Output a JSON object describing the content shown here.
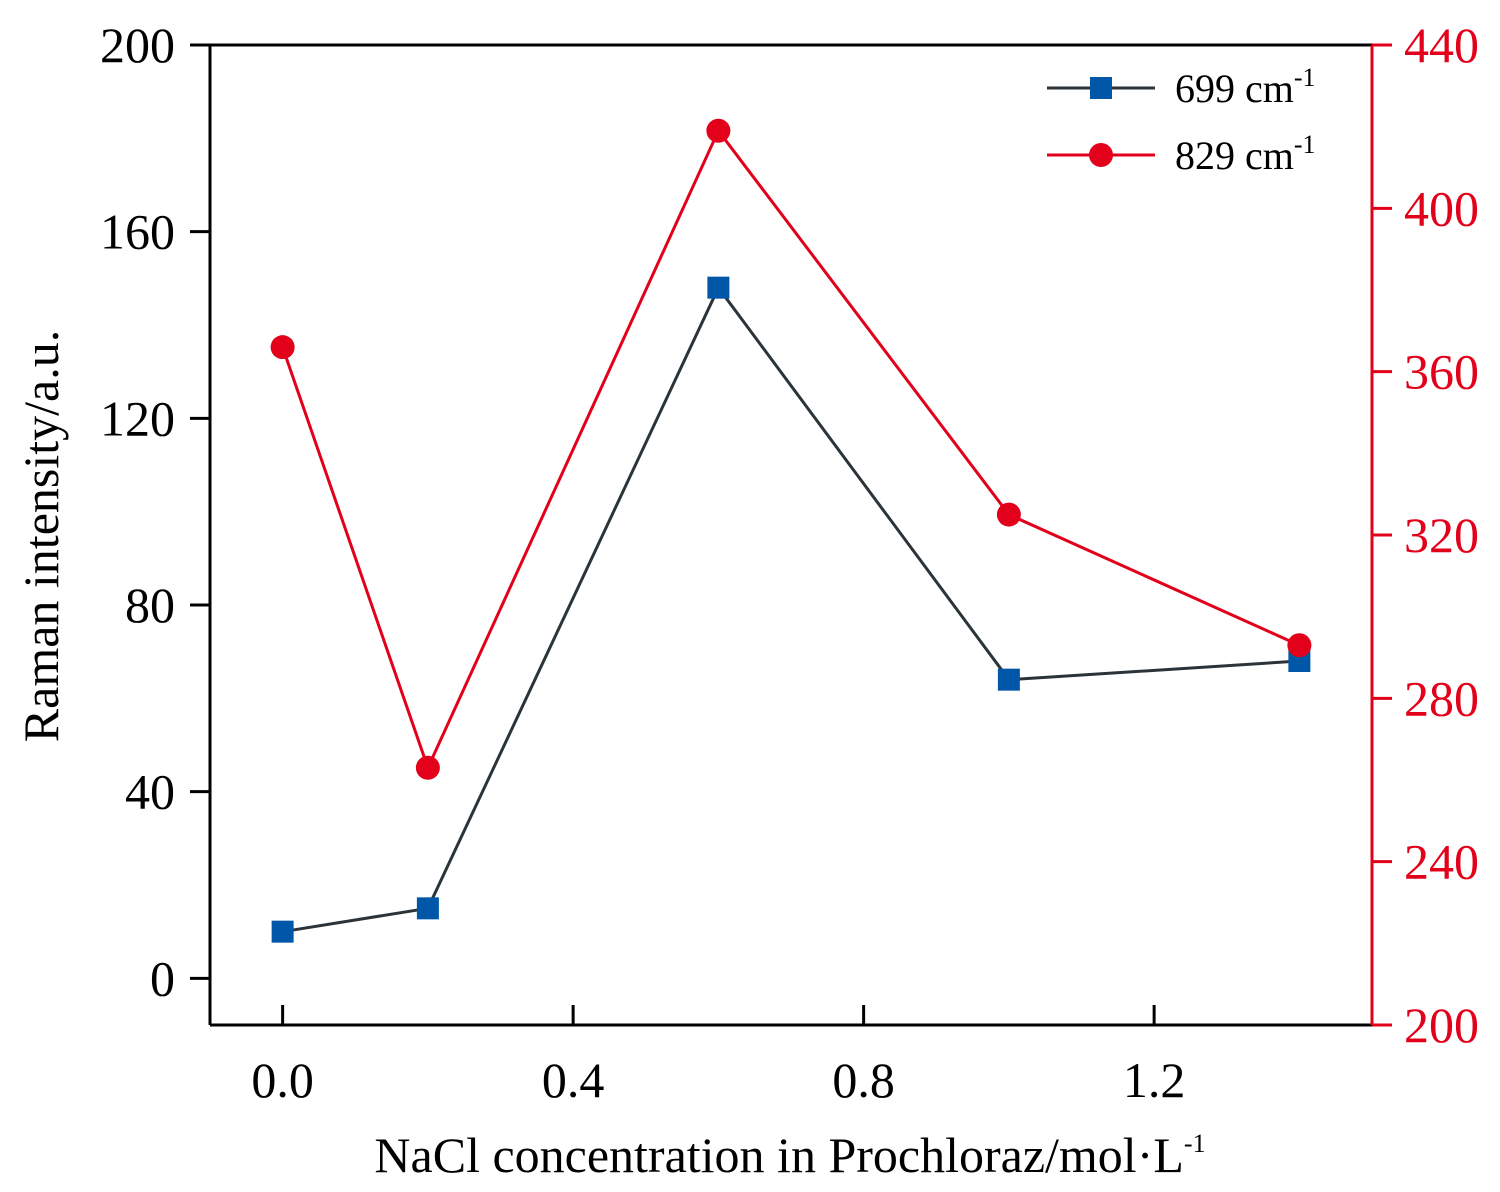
{
  "chart_data": {
    "type": "line",
    "xlabel": "NaCl concentration in Prochloraz/mol·L",
    "xlabel_sup": "-1",
    "ylabel": "Raman intensity/a.u.",
    "x_ticks": [
      "0.0",
      "0.4",
      "0.8",
      "1.2"
    ],
    "y_ticks_left": [
      "0",
      "40",
      "80",
      "120",
      "160",
      "200"
    ],
    "y_ticks_right": [
      "200",
      "240",
      "280",
      "320",
      "360",
      "400",
      "440"
    ],
    "xlim": [
      -0.1,
      1.5
    ],
    "ylim_left": [
      -10,
      200
    ],
    "ylim_right": [
      200,
      440
    ],
    "grid": false,
    "legend_position": "top-right",
    "colors": {
      "series_699": "#2a3439",
      "marker_699": "#0057a8",
      "series_829": "#e2001a",
      "right_axis": "#e2001a"
    },
    "series": [
      {
        "name": "699 cm",
        "name_sup": "-1",
        "axis": "left",
        "marker": "square",
        "x": [
          0.0,
          0.2,
          0.6,
          1.0,
          1.4
        ],
        "y": [
          10,
          15,
          148,
          64,
          68
        ]
      },
      {
        "name": "829 cm",
        "name_sup": "-1",
        "axis": "right",
        "marker": "circle",
        "x": [
          0.0,
          0.2,
          0.6,
          1.0,
          1.4
        ],
        "y": [
          366,
          263,
          419,
          325,
          293
        ]
      }
    ]
  }
}
